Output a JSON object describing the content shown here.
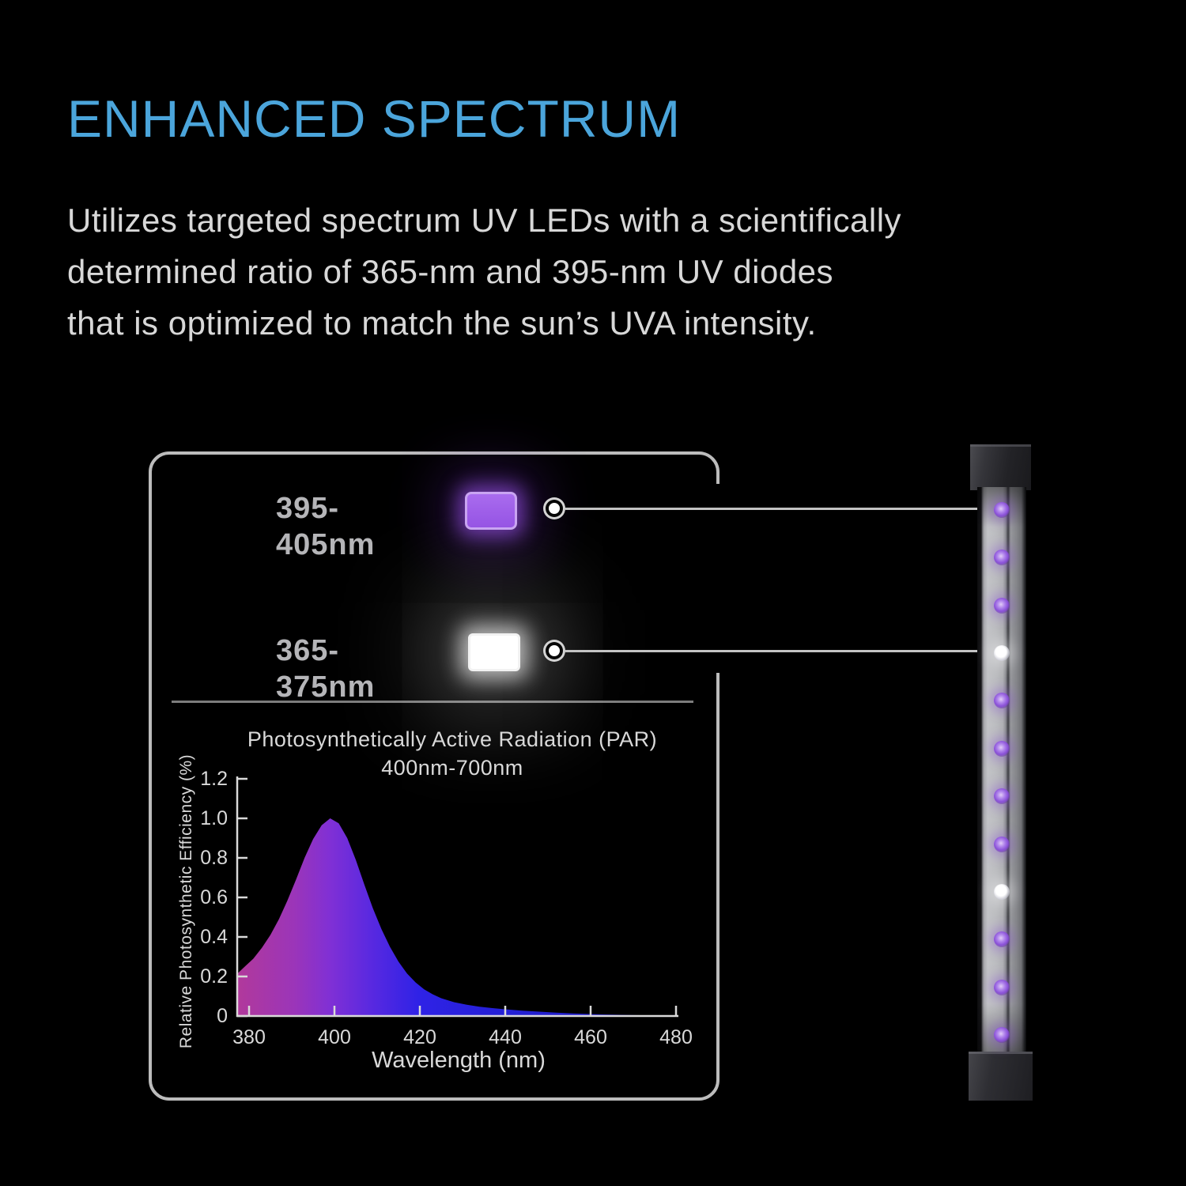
{
  "header": {
    "title": "ENHANCED SPECTRUM",
    "title_color": "#4BA5DB"
  },
  "paragraph": {
    "lines": [
      "Utilizes targeted spectrum UV LEDs with a scientifically",
      "determined ratio of 365-nm and 395-nm UV diodes",
      "that is optimized to match the sun’s UVA intensity."
    ]
  },
  "callouts": [
    {
      "label": "395-405nm",
      "led_type": "purple",
      "led_color": "#9B58E6"
    },
    {
      "label": "365-375nm",
      "led_type": "white",
      "led_color": "#FFFFFF"
    }
  ],
  "chart_data": {
    "type": "area",
    "title": "Photosynthetically Active Radiation (PAR)",
    "subtitle": "400nm-700nm",
    "xlabel": "Wavelength (nm)",
    "ylabel": "Relative Photosynthetic Efficiency (%)",
    "x_ticks": [
      380,
      400,
      420,
      440,
      460,
      480
    ],
    "y_ticks": [
      "0",
      "0.2",
      "0.4",
      "0.6",
      "0.8",
      "1.0",
      "1.2"
    ],
    "xlim": [
      377,
      481
    ],
    "ylim": [
      0,
      1.2
    ],
    "grid": false,
    "legend": false,
    "peak": {
      "wavelength_nm": 399,
      "efficiency": 1.0
    },
    "series": [
      {
        "name": "Relative photosynthetic efficiency",
        "x": [
          377.3,
          379,
          381,
          383,
          385,
          387,
          389,
          391,
          393,
          395,
          397,
          399,
          401,
          403,
          405,
          407,
          409,
          411,
          413,
          415,
          417,
          419,
          421,
          423,
          425,
          428,
          431,
          434,
          437,
          440,
          444,
          448,
          452,
          456,
          460,
          465,
          470,
          475,
          480
        ],
        "y": [
          0.215,
          0.25,
          0.29,
          0.345,
          0.41,
          0.49,
          0.585,
          0.69,
          0.8,
          0.895,
          0.965,
          1.0,
          0.975,
          0.9,
          0.79,
          0.665,
          0.545,
          0.44,
          0.35,
          0.275,
          0.215,
          0.17,
          0.135,
          0.11,
          0.09,
          0.07,
          0.057,
          0.047,
          0.04,
          0.034,
          0.027,
          0.022,
          0.017,
          0.013,
          0.01,
          0.007,
          0.0045,
          0.003,
          0.002
        ]
      }
    ],
    "fill_gradient": [
      {
        "offset": 0.0,
        "color": "#B1399B"
      },
      {
        "offset": 0.13,
        "color": "#9B35B9"
      },
      {
        "offset": 0.21,
        "color": "#8030D5"
      },
      {
        "offset": 0.3,
        "color": "#5A29E0"
      },
      {
        "offset": 0.41,
        "color": "#2F22E6"
      },
      {
        "offset": 0.6,
        "color": "#2420D6"
      },
      {
        "offset": 1.0,
        "color": "#1A18B8"
      }
    ]
  },
  "led_bar": {
    "led_count": 12,
    "white_led_positions": [
      4,
      9
    ],
    "purple_led_color": "#8A50D8",
    "white_led_color": "#FFFFFF"
  }
}
